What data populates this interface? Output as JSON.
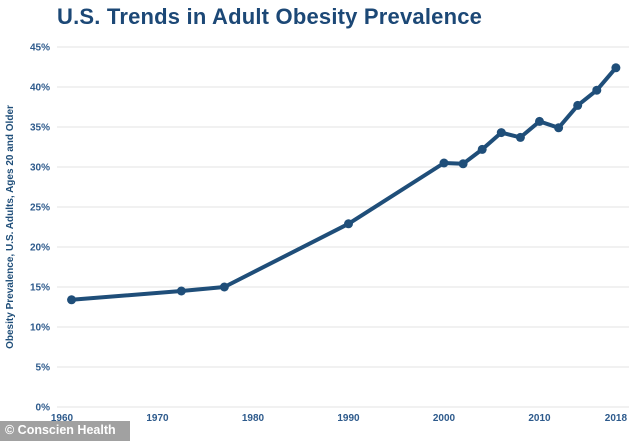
{
  "title": "U.S. Trends in Adult Obesity Prevalence",
  "attribution": "© Conscien Health",
  "colors": {
    "title": "#1c4876",
    "line": "#1f4e79",
    "marker": "#1f4e79",
    "tick_label": "#2d5a8c",
    "axis_label": "#1f4e79",
    "gridline": "#e3e3e3",
    "background": "#ffffff",
    "attribution_bg": "rgba(145,145,145,0.85)",
    "attribution_text": "#ffffff"
  },
  "chart_data": {
    "type": "line",
    "title": "U.S. Trends in Adult Obesity Prevalence",
    "xlabel": "",
    "ylabel": "Obesity Prevalence, U.S. Adults, Ages 20 and Older",
    "series": [
      {
        "name": "Adult obesity prevalence (%)",
        "x": [
          1961,
          1972.5,
          1977,
          1990,
          2000,
          2002,
          2004,
          2006,
          2008,
          2010,
          2012,
          2014,
          2016,
          2018
        ],
        "values": [
          13.4,
          14.5,
          15.0,
          22.9,
          30.5,
          30.4,
          32.2,
          34.3,
          33.7,
          35.7,
          34.9,
          37.7,
          39.6,
          42.4
        ]
      }
    ],
    "x_ticks": [
      1960,
      1970,
      1980,
      1990,
      2000,
      2010,
      2018
    ],
    "y_ticks": [
      0,
      5,
      10,
      15,
      20,
      25,
      30,
      35,
      40,
      45
    ],
    "y_tick_suffix": "%",
    "ylim": [
      0,
      45
    ],
    "xlim": [
      1959.5,
      2019.8
    ],
    "grid": "horizontal",
    "legend": "none",
    "marker": "circle"
  }
}
